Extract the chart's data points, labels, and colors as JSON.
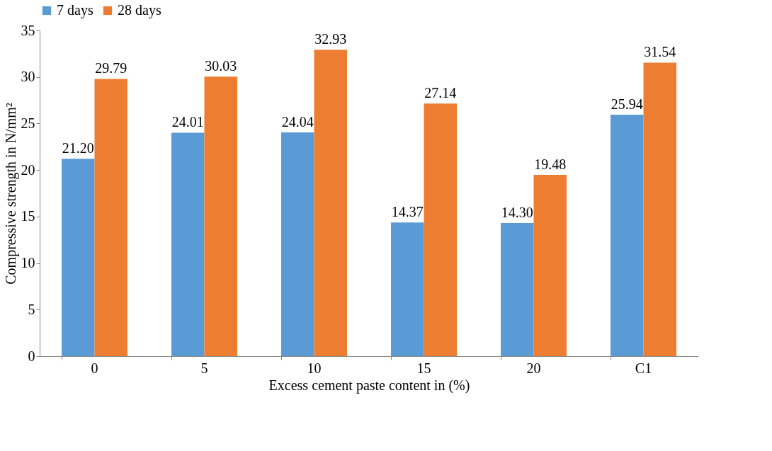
{
  "chart_data": {
    "type": "bar",
    "xlabel": "Excess cement paste content in (%)",
    "ylabel": "Compressive strength in N/mm²",
    "categories": [
      "0",
      "5",
      "10",
      "15",
      "20",
      "C1"
    ],
    "series": [
      {
        "name": "7 days",
        "color": "#5b9bd5",
        "values": [
          21.2,
          24.01,
          24.04,
          14.37,
          14.3,
          25.94
        ],
        "value_labels": [
          "21.20",
          "24.01",
          "24.04",
          "14.37",
          "14.30",
          "25.94"
        ]
      },
      {
        "name": "28 days",
        "color": "#ed7d31",
        "values": [
          29.79,
          30.03,
          32.93,
          27.14,
          19.48,
          31.54
        ],
        "value_labels": [
          "29.79",
          "30.03",
          "32.93",
          "27.14",
          "19.48",
          "31.54"
        ]
      }
    ],
    "ylim": [
      0,
      35
    ],
    "yticks": [
      0,
      5,
      10,
      15,
      20,
      25,
      30,
      35
    ],
    "grid": false,
    "legend": "top"
  }
}
